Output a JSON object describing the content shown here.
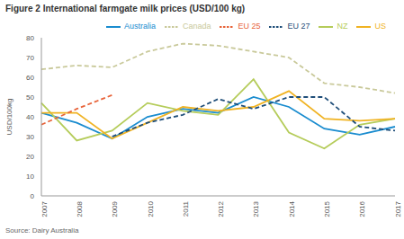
{
  "chart_data": {
    "type": "line",
    "title": "Figure 2 International farmgate milk prices (USD/100 kg)",
    "y_label": "USD/100kg",
    "source": "Source: Dairy Australia",
    "categories": [
      "2007",
      "2008",
      "2009",
      "2010",
      "2011",
      "2012",
      "2013",
      "2014",
      "2015",
      "2016",
      "2017"
    ],
    "series": [
      {
        "name": "Australia",
        "color": "#1a8ccf",
        "line_style": "solid",
        "values": [
          42,
          37,
          29,
          40,
          44,
          42,
          50,
          45,
          34,
          31,
          35
        ]
      },
      {
        "name": "NZ",
        "color": "#b5cc5a",
        "line_style": "solid",
        "values": [
          47,
          28,
          33,
          47,
          43,
          41,
          59,
          32,
          24,
          36,
          39
        ]
      },
      {
        "name": "US",
        "color": "#f0b323",
        "line_style": "solid",
        "values": [
          42,
          42,
          29,
          37,
          45,
          43,
          45,
          53,
          39,
          38,
          39
        ]
      },
      {
        "name": "EU 25",
        "color": "#e8643a",
        "line_style": "dashed",
        "values": [
          36,
          44,
          51,
          null,
          null,
          null,
          null,
          null,
          null,
          null,
          null
        ]
      },
      {
        "name": "EU 27",
        "color": "#1f4e79",
        "line_style": "dashed",
        "values": [
          null,
          null,
          30,
          37,
          41,
          49,
          44,
          50,
          50,
          35,
          33
        ]
      },
      {
        "name": "Canada",
        "color": "#c9c99a",
        "line_style": "dashed",
        "values": [
          64,
          66,
          65,
          73,
          77,
          76,
          73,
          70,
          57,
          55,
          52
        ]
      }
    ],
    "ylim": [
      0,
      80
    ],
    "yticks": [
      0,
      10,
      20,
      30,
      40,
      50,
      60,
      70,
      80
    ],
    "grid": false,
    "legend": "top"
  }
}
